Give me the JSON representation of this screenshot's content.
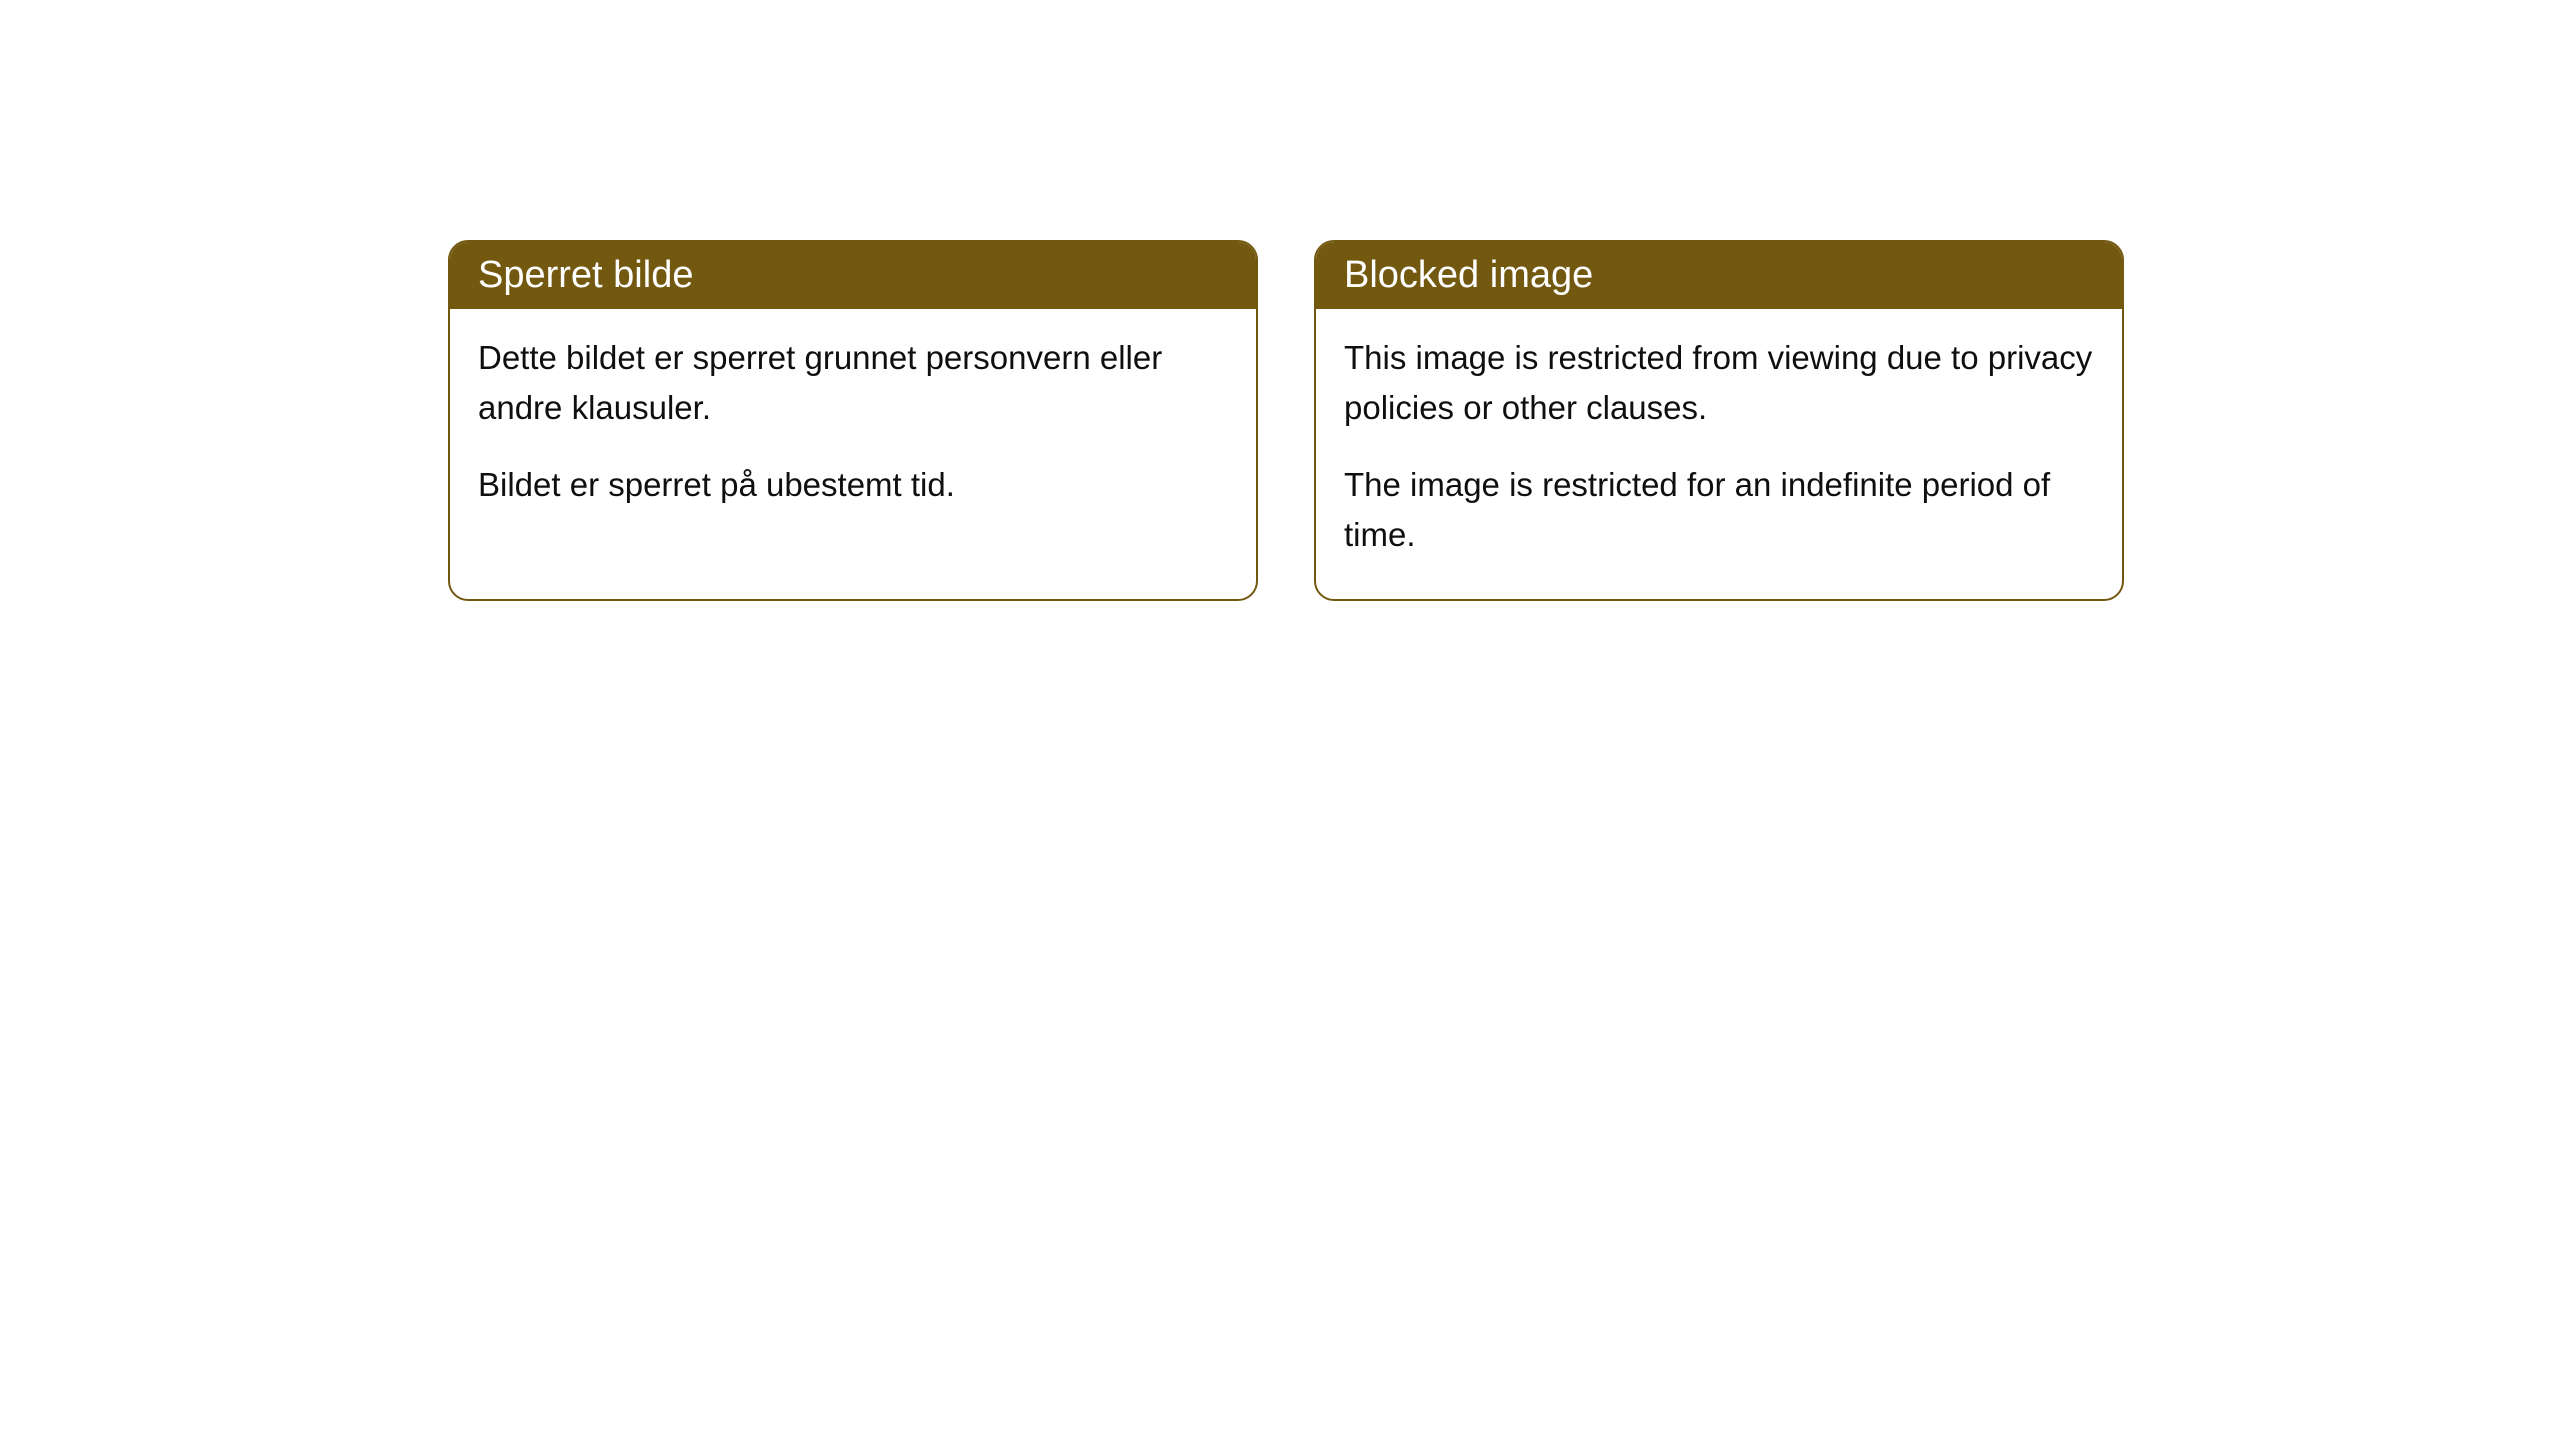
{
  "cards": [
    {
      "title": "Sperret bilde",
      "paragraph1": "Dette bildet er sperret grunnet personvern eller andre klausuler.",
      "paragraph2": "Bildet er sperret på ubestemt tid."
    },
    {
      "title": "Blocked image",
      "paragraph1": "This image is restricted from viewing due to privacy policies or other clauses.",
      "paragraph2": "The image is restricted for an indefinite period of time."
    }
  ],
  "style": {
    "header_background_color": "#735810",
    "header_text_color": "#ffffff",
    "border_color": "#735810",
    "body_text_color": "#0f0f0f",
    "card_background_color": "#ffffff",
    "page_background_color": "#ffffff",
    "border_radius": 20,
    "header_fontsize": 38,
    "body_fontsize": 33
  }
}
